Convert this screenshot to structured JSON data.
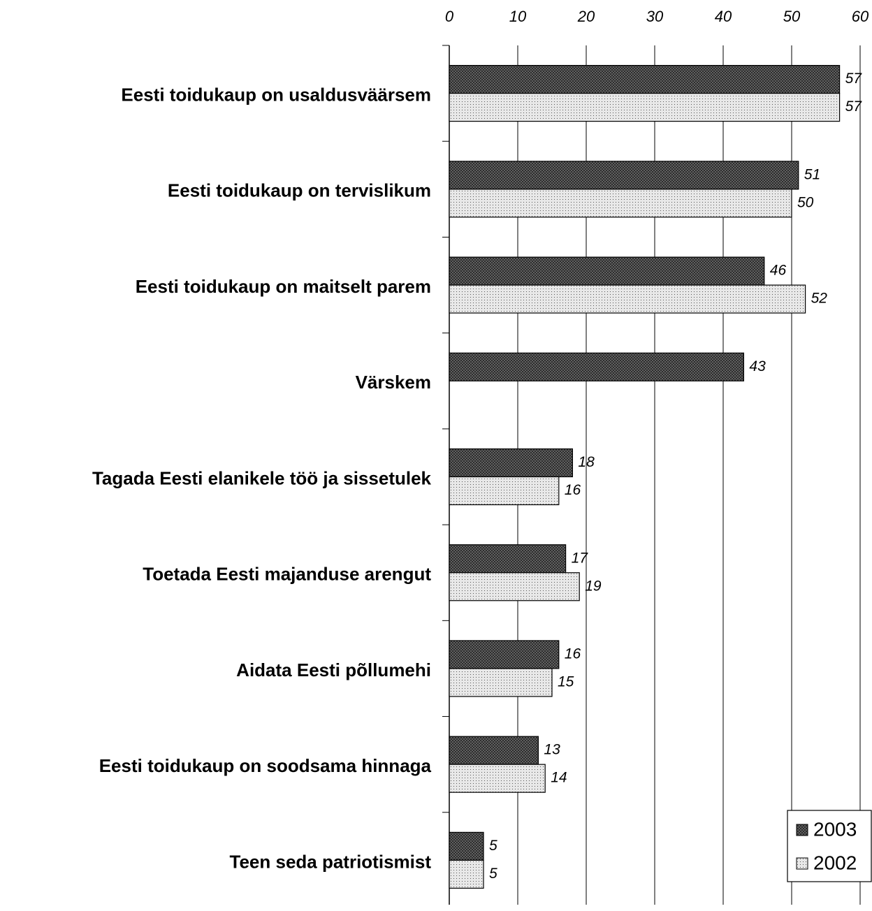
{
  "chart_data": {
    "type": "bar",
    "orientation": "horizontal",
    "categories": [
      "Eesti toidukaup on usaldusväärsem",
      "Eesti toidukaup on tervislikum",
      "Eesti toidukaup on maitselt parem",
      "Värskem",
      "Tagada Eesti elanikele töö ja sissetulek",
      "Toetada Eesti majanduse arengut",
      "Aidata Eesti põllumehi",
      "Eesti toidukaup on soodsama hinnaga",
      "Teen seda patriotismist"
    ],
    "series": [
      {
        "name": "2003",
        "color": "#707070",
        "values": [
          57,
          51,
          46,
          43,
          18,
          17,
          16,
          13,
          5
        ]
      },
      {
        "name": "2002",
        "color": "#e8e8e8",
        "values": [
          57,
          50,
          52,
          null,
          16,
          19,
          15,
          14,
          5
        ]
      }
    ],
    "xlim": [
      0,
      60
    ],
    "xticks": [
      0,
      10,
      20,
      30,
      40,
      50,
      60
    ],
    "grid": true,
    "legend": "lower right"
  }
}
